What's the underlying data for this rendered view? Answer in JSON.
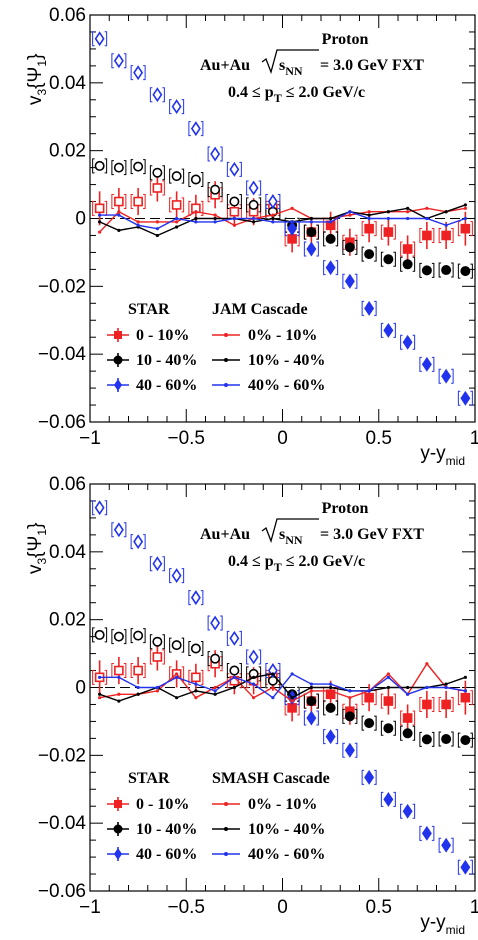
{
  "colors": {
    "red": "#ee2222",
    "black": "#000000",
    "blue": "#2233ee"
  },
  "chart_data": [
    {
      "type": "scatter",
      "title": "",
      "annotations": [
        "Proton",
        "Au+Au",
        "3.0 GeV FXT",
        "0.4",
        "2.0 GeV/c"
      ],
      "xlabel": "y-y_mid",
      "ylabel": "v3{Ψ1}",
      "xlim": [
        -1,
        1
      ],
      "ylim": [
        -0.06,
        0.06
      ],
      "xticks": [
        "−1",
        "−0.5",
        "0",
        "0.5",
        "1"
      ],
      "yticks": [
        "0.06",
        "0.04",
        "0.02",
        "0",
        "−0.02",
        "−0.04",
        "−0.06"
      ],
      "legend_headers": [
        "STAR",
        "JAM Cascade"
      ],
      "legend_data_labels": [
        "0 - 10%",
        "10 - 40%",
        "40 - 60%"
      ],
      "legend_model_labels": [
        "0% - 10%",
        "10% - 40%",
        "40% - 60%"
      ],
      "x": [
        -0.95,
        -0.85,
        -0.75,
        -0.65,
        -0.55,
        -0.45,
        -0.35,
        -0.25,
        -0.15,
        -0.05,
        0.05,
        0.15,
        0.25,
        0.35,
        0.45,
        0.55,
        0.65,
        0.75,
        0.85,
        0.95
      ],
      "series": [
        {
          "name": "0 - 10%",
          "kind": "data",
          "color": "#ee2222",
          "values": [
            0.003,
            0.005,
            0.005,
            0.009,
            0.004,
            0.003,
            0.007,
            0.002,
            0.002,
            0.003,
            -0.006,
            -0.004,
            -0.002,
            -0.007,
            -0.003,
            -0.004,
            -0.009,
            -0.005,
            -0.005,
            -0.003
          ],
          "errors": [
            0.005,
            0.004,
            0.004,
            0.004,
            0.004,
            0.004,
            0.004,
            0.004,
            0.004,
            0.004,
            0.004,
            0.004,
            0.004,
            0.004,
            0.004,
            0.004,
            0.004,
            0.004,
            0.004,
            0.005
          ]
        },
        {
          "name": "10 - 40%",
          "kind": "data",
          "color": "#000000",
          "values": [
            0.0155,
            0.015,
            0.0153,
            0.0135,
            0.0125,
            0.0115,
            0.0085,
            0.005,
            0.004,
            0.002,
            -0.002,
            -0.004,
            -0.006,
            -0.0085,
            -0.0105,
            -0.012,
            -0.0135,
            -0.0153,
            -0.0152,
            -0.0155
          ],
          "errors": []
        },
        {
          "name": "40 - 60%",
          "kind": "data",
          "color": "#2233ee",
          "values": [
            0.053,
            0.0465,
            0.043,
            0.0365,
            0.033,
            0.0265,
            0.019,
            0.0145,
            0.009,
            0.005,
            -0.003,
            -0.009,
            -0.0145,
            -0.0185,
            -0.0265,
            -0.033,
            -0.0365,
            -0.043,
            -0.0465,
            -0.053
          ],
          "errors": []
        },
        {
          "name": "0% - 10%",
          "kind": "model",
          "color": "#ee2222",
          "values": [
            -0.004,
            0.002,
            -0.001,
            -0.001,
            -0.001,
            0.002,
            0.001,
            -0.002,
            0.0,
            0.001,
            0.003,
            0.0,
            0.0,
            0.001,
            0.002,
            0.002,
            0.002,
            0.003,
            0.002,
            0.003
          ]
        },
        {
          "name": "10% - 40%",
          "kind": "model",
          "color": "#000000",
          "values": [
            -0.001,
            -0.0035,
            -0.0025,
            -0.005,
            -0.0025,
            0.0,
            0.0,
            0.0,
            -0.001,
            0.0,
            -0.001,
            0.0,
            0.0,
            0.002,
            0.001,
            0.002,
            0.003,
            0.0,
            0.002,
            0.004
          ]
        },
        {
          "name": "40% - 60%",
          "kind": "model",
          "color": "#2233ee",
          "values": [
            0.001,
            0.001,
            -0.002,
            -0.003,
            0.0,
            -0.001,
            -0.001,
            0.0,
            0.0,
            -0.001,
            -0.001,
            -0.001,
            -0.001,
            0.002,
            0.0,
            0.0,
            0.0,
            0.0,
            -0.002,
            0.0
          ]
        }
      ]
    },
    {
      "type": "scatter",
      "title": "",
      "annotations": [
        "Proton",
        "Au+Au",
        "3.0 GeV FXT",
        "0.4",
        "2.0 GeV/c"
      ],
      "xlabel": "y-y_mid",
      "ylabel": "v3{Ψ1}",
      "xlim": [
        -1,
        1
      ],
      "ylim": [
        -0.06,
        0.06
      ],
      "xticks": [
        "−1",
        "−0.5",
        "0",
        "0.5",
        "1"
      ],
      "yticks": [
        "0.06",
        "0.04",
        "0.02",
        "0",
        "−0.02",
        "−0.04",
        "−0.06"
      ],
      "legend_headers": [
        "STAR",
        "SMASH Cascade"
      ],
      "legend_data_labels": [
        "0 - 10%",
        "10 - 40%",
        "40 - 60%"
      ],
      "legend_model_labels": [
        "0% - 10%",
        "10% - 40%",
        "40% - 60%"
      ],
      "x": [
        -0.95,
        -0.85,
        -0.75,
        -0.65,
        -0.55,
        -0.45,
        -0.35,
        -0.25,
        -0.15,
        -0.05,
        0.05,
        0.15,
        0.25,
        0.35,
        0.45,
        0.55,
        0.65,
        0.75,
        0.85,
        0.95
      ],
      "series": [
        {
          "name": "0 - 10%",
          "kind": "data",
          "color": "#ee2222",
          "values": [
            0.003,
            0.005,
            0.005,
            0.009,
            0.004,
            0.003,
            0.007,
            0.002,
            0.002,
            0.003,
            -0.006,
            -0.004,
            -0.002,
            -0.007,
            -0.003,
            -0.004,
            -0.009,
            -0.005,
            -0.005,
            -0.003
          ],
          "errors": [
            0.005,
            0.004,
            0.004,
            0.004,
            0.004,
            0.004,
            0.004,
            0.004,
            0.004,
            0.004,
            0.004,
            0.004,
            0.004,
            0.004,
            0.004,
            0.004,
            0.004,
            0.004,
            0.004,
            0.005
          ]
        },
        {
          "name": "10 - 40%",
          "kind": "data",
          "color": "#000000",
          "values": [
            0.0155,
            0.015,
            0.0153,
            0.0135,
            0.0125,
            0.0115,
            0.0085,
            0.005,
            0.004,
            0.002,
            -0.002,
            -0.004,
            -0.006,
            -0.0085,
            -0.0105,
            -0.012,
            -0.0135,
            -0.0153,
            -0.0152,
            -0.0155
          ],
          "errors": []
        },
        {
          "name": "40 - 60%",
          "kind": "data",
          "color": "#2233ee",
          "values": [
            0.053,
            0.0465,
            0.043,
            0.0365,
            0.033,
            0.0265,
            0.019,
            0.0145,
            0.009,
            0.005,
            -0.003,
            -0.009,
            -0.0145,
            -0.0185,
            -0.0265,
            -0.033,
            -0.0365,
            -0.043,
            -0.0465,
            -0.053
          ],
          "errors": []
        },
        {
          "name": "0% - 10%",
          "kind": "model",
          "color": "#ee2222",
          "values": [
            -0.003,
            -0.002,
            -0.002,
            -0.001,
            0.004,
            -0.003,
            0.0,
            0.003,
            -0.003,
            0.0,
            -0.004,
            -0.001,
            -0.001,
            -0.003,
            -0.001,
            0.004,
            -0.002,
            0.007,
            0.0,
            -0.001
          ]
        },
        {
          "name": "10% - 40%",
          "kind": "model",
          "color": "#000000",
          "values": [
            -0.002,
            -0.004,
            -0.002,
            0.0,
            -0.003,
            -0.001,
            -0.002,
            0.0,
            0.003,
            0.004,
            -0.003,
            0.0,
            0.0,
            -0.001,
            -0.001,
            0.0,
            0.0,
            0.0,
            0.001,
            0.003
          ]
        },
        {
          "name": "40% - 60%",
          "kind": "model",
          "color": "#2233ee",
          "values": [
            0.003,
            0.003,
            0.0,
            0.0,
            0.003,
            0.001,
            -0.001,
            0.003,
            0.001,
            -0.003,
            0.004,
            0.001,
            0.001,
            -0.001,
            -0.001,
            0.003,
            -0.002,
            0.0,
            0.0,
            -0.001
          ]
        }
      ]
    }
  ]
}
